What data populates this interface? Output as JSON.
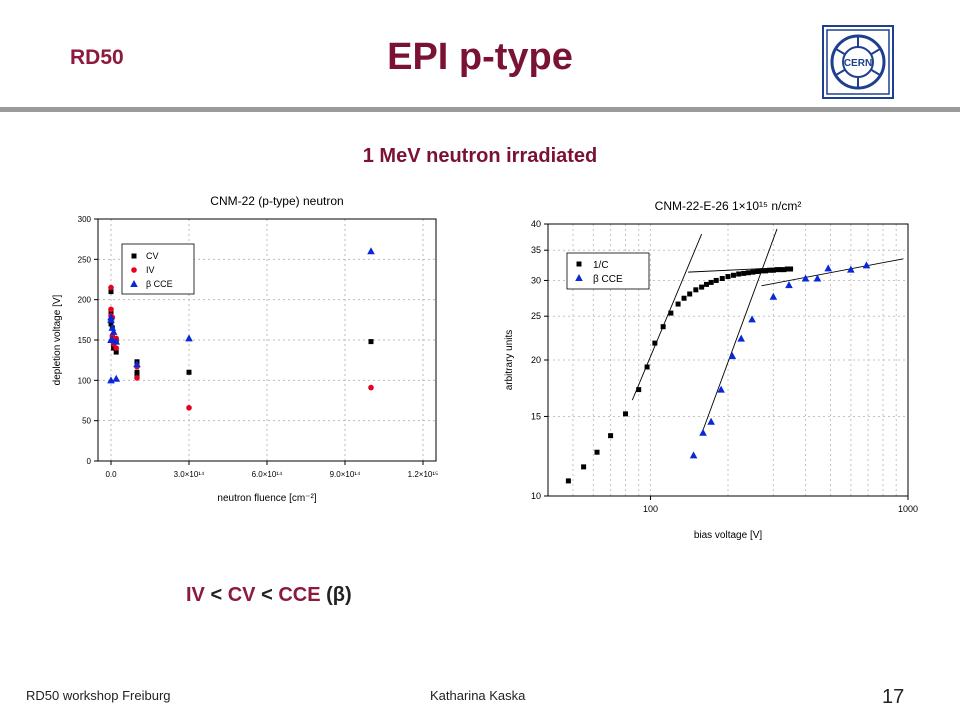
{
  "header": {
    "group_label": "RD50",
    "title": "EPI p-type",
    "logo_text": "CERN"
  },
  "colors": {
    "accent": "#7a1234",
    "rule": "#9a9a9a",
    "cv": "#000000",
    "iv": "#e8001c",
    "cce": "#0a27d8"
  },
  "subtitle": "1 MeV neutron irradiated",
  "relation": {
    "iv": "IV",
    "lt1": "<",
    "cv": "CV",
    "lt2": "<",
    "cce": "CCE",
    "beta": "(β)"
  },
  "footer": {
    "left": "RD50 workshop Freiburg",
    "middle": "Katharina Kaska",
    "page": "17"
  },
  "chart_data": [
    {
      "type": "scatter",
      "title": "CNM-22 (p-type) neutron",
      "xlabel": "neutron fluence [cm⁻²]",
      "ylabel": "depletion voltage [V]",
      "xlim": [
        -50000000000000.0,
        1250000000000000.0
      ],
      "ylim": [
        0,
        300
      ],
      "x_ticks": [
        {
          "value": 0,
          "label": "0.0"
        },
        {
          "value": 300000000000000.0,
          "label": "3.0×10¹⁴"
        },
        {
          "value": 600000000000000.0,
          "label": "6.0×10¹⁴"
        },
        {
          "value": 900000000000000.0,
          "label": "9.0×10¹⁴"
        },
        {
          "value": 1200000000000000.0,
          "label": "1.2×10¹⁵"
        }
      ],
      "y_ticks": [
        0,
        50,
        100,
        150,
        200,
        250,
        300
      ],
      "grid": true,
      "legend_position": "top-left",
      "series": [
        {
          "name": "CV",
          "marker": "square",
          "color": "#000000",
          "x": [
            0,
            0,
            0,
            5000000000000.0,
            5000000000000.0,
            10000000000000.0,
            10000000000000.0,
            20000000000000.0,
            20000000000000.0,
            100000000000000.0,
            100000000000000.0,
            100000000000000.0,
            300000000000000.0,
            1000000000000000.0
          ],
          "y": [
            210,
            185,
            170,
            165,
            150,
            145,
            140,
            135,
            148,
            123,
            110,
            107,
            110,
            148
          ]
        },
        {
          "name": "IV",
          "marker": "circle",
          "color": "#e8001c",
          "x": [
            0,
            0,
            0,
            5000000000000.0,
            5000000000000.0,
            10000000000000.0,
            10000000000000.0,
            20000000000000.0,
            20000000000000.0,
            100000000000000.0,
            100000000000000.0,
            300000000000000.0,
            1000000000000000.0
          ],
          "y": [
            215,
            188,
            180,
            178,
            155,
            150,
            145,
            140,
            152,
            117,
            103,
            66,
            91
          ]
        },
        {
          "name": "β CCE",
          "marker": "triangle",
          "color": "#0a27d8",
          "x": [
            0,
            0,
            0,
            0,
            5000000000000.0,
            5000000000000.0,
            10000000000000.0,
            20000000000000.0,
            20000000000000.0,
            100000000000000.0,
            300000000000000.0,
            1000000000000000.0
          ],
          "y": [
            178,
            175,
            150,
            100,
            165,
            150,
            160,
            148,
            102,
            120,
            152,
            260
          ]
        }
      ]
    },
    {
      "type": "scatter",
      "title": "CNM-22-E-26 1×10¹⁵ n/cm²",
      "xlabel": "bias voltage [V]",
      "ylabel": "arbitrary units",
      "x_scale": "log",
      "y_scale": "log",
      "xlim": [
        40,
        1000
      ],
      "ylim": [
        10,
        40
      ],
      "x_ticks": [
        {
          "value": 100,
          "label": "100"
        },
        {
          "value": 1000,
          "label": "1000"
        }
      ],
      "y_ticks": [
        10,
        15,
        20,
        25,
        30,
        35,
        40
      ],
      "grid": true,
      "legend_position": "top-left",
      "series": [
        {
          "name": "1/C",
          "marker": "square",
          "color": "#000000",
          "x": [
            48,
            55,
            62,
            70,
            80,
            90,
            97,
            104,
            112,
            120,
            128,
            135,
            142,
            150,
            158,
            165,
            172,
            180,
            190,
            200,
            210,
            220,
            230,
            240,
            250,
            260,
            270,
            280,
            290,
            300,
            310,
            320,
            330,
            340,
            350
          ],
          "y": [
            10.8,
            11.6,
            12.5,
            13.6,
            15.2,
            17.2,
            19.3,
            21.8,
            23.7,
            25.4,
            26.6,
            27.4,
            28.0,
            28.6,
            29.0,
            29.4,
            29.7,
            30.0,
            30.3,
            30.6,
            30.8,
            31.0,
            31.1,
            31.2,
            31.3,
            31.4,
            31.5,
            31.5,
            31.6,
            31.6,
            31.7,
            31.7,
            31.7,
            31.8,
            31.8
          ]
        },
        {
          "name": "β CCE",
          "marker": "triangle",
          "color": "#0a27d8",
          "x": [
            147,
            160,
            172,
            188,
            208,
            225,
            248,
            300,
            345,
            400,
            445,
            490,
            600,
            690
          ],
          "y": [
            12.3,
            13.8,
            14.6,
            17.2,
            20.4,
            22.3,
            24.6,
            27.6,
            29.3,
            30.3,
            30.3,
            31.9,
            31.7,
            32.4
          ]
        }
      ]
    }
  ]
}
